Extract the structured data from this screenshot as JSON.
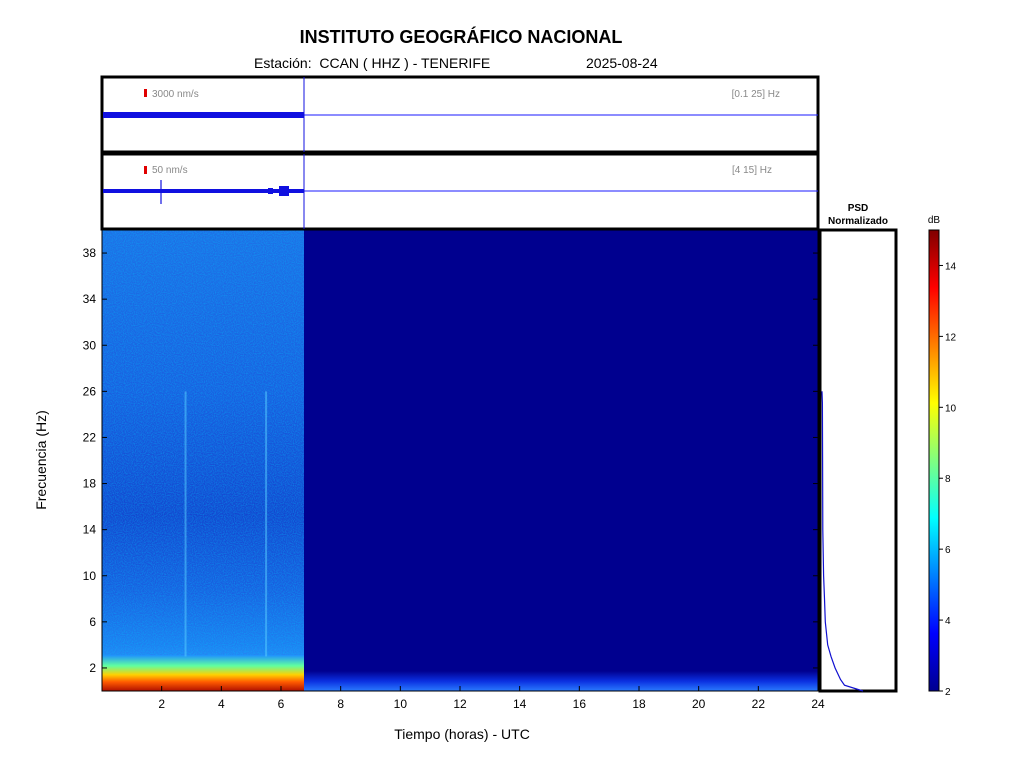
{
  "header": {
    "title": "INSTITUTO GEOGRÁFICO NACIONAL",
    "station_label": "Estación:  CCAN ( HHZ ) - TENERIFE",
    "date": "2025-08-24"
  },
  "chart_data": [
    {
      "type": "line",
      "name": "seismogram-broadband",
      "scale_label": "3000 nm/s",
      "band_label": "[0.1 25] Hz",
      "x_range": [
        0,
        24
      ],
      "data_end_hour": 6.8,
      "amplitude_note": "continuous noise band until ~6.8 h, flat afterwards"
    },
    {
      "type": "line",
      "name": "seismogram-filtered",
      "scale_label": "50 nm/s",
      "band_label": "[4 15] Hz",
      "x_range": [
        0,
        24
      ],
      "data_end_hour": 6.8,
      "spikes_hours": [
        1.95,
        6.2
      ],
      "amplitude_note": "thin noise trace with a transient near 2 h and bursts near 6 h"
    },
    {
      "type": "heatmap",
      "name": "spectrogram",
      "xlabel": "Tiempo (horas) - UTC",
      "ylabel": "Frecuencia  (Hz)",
      "xlim": [
        0,
        24
      ],
      "ylim": [
        0,
        40
      ],
      "x_ticks": [
        2,
        4,
        6,
        8,
        10,
        12,
        14,
        16,
        18,
        20,
        22,
        24
      ],
      "y_ticks": [
        2,
        6,
        10,
        14,
        18,
        22,
        26,
        30,
        34,
        38
      ],
      "data_end_hour": 6.8,
      "vertical_streaks_hours": [
        2.8,
        5.5
      ],
      "colorbar": {
        "label": "dB",
        "range": [
          2,
          15
        ],
        "ticks": [
          2,
          4,
          6,
          8,
          10,
          12,
          14
        ]
      }
    },
    {
      "type": "line",
      "name": "psd-normalized",
      "title": "PSD\nNormalizado",
      "ylim": [
        0,
        40
      ],
      "profile": [
        {
          "f": 0.0,
          "v": 1.0
        },
        {
          "f": 0.5,
          "v": 0.55
        },
        {
          "f": 1.0,
          "v": 0.45
        },
        {
          "f": 2.0,
          "v": 0.32
        },
        {
          "f": 3.0,
          "v": 0.22
        },
        {
          "f": 4.0,
          "v": 0.14
        },
        {
          "f": 6.0,
          "v": 0.08
        },
        {
          "f": 8.0,
          "v": 0.06
        },
        {
          "f": 10.0,
          "v": 0.04
        },
        {
          "f": 12.0,
          "v": 0.03
        },
        {
          "f": 14.0,
          "v": 0.02
        },
        {
          "f": 20.0,
          "v": 0.015
        },
        {
          "f": 25.0,
          "v": 0.01
        },
        {
          "f": 26.0,
          "v": 0.0
        }
      ]
    }
  ]
}
